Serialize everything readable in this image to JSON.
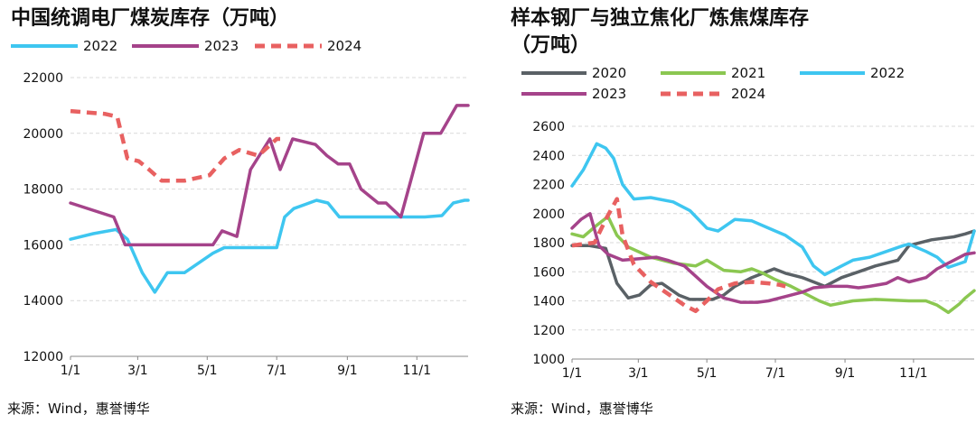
{
  "charts": [
    {
      "id": "left",
      "title": "中国统调电厂煤炭库存（万吨）",
      "source": "来源：Wind，惠誉博华",
      "chart_data": {
        "type": "line",
        "title": "中国统调电厂煤炭库存（万吨）",
        "xlabel": "",
        "ylabel": "",
        "x_ticks": [
          "1/1",
          "3/1",
          "5/1",
          "7/1",
          "9/1",
          "11/1"
        ],
        "x_tick_days": [
          0,
          59,
          120,
          181,
          243,
          304
        ],
        "x_range_days": [
          0,
          349
        ],
        "ylim": [
          12000,
          22000
        ],
        "y_ticks": [
          12000,
          14000,
          16000,
          18000,
          20000,
          22000
        ],
        "grid": true,
        "legend_position": "top-left",
        "series": [
          {
            "name": "2022",
            "color": "#3EC6F0",
            "dash": false,
            "points": [
              [
                0,
                16200
              ],
              [
                20,
                16400
              ],
              [
                40,
                16550
              ],
              [
                50,
                16200
              ],
              [
                63,
                15000
              ],
              [
                74,
                14300
              ],
              [
                85,
                15000
              ],
              [
                100,
                15000
              ],
              [
                125,
                15700
              ],
              [
                135,
                15900
              ],
              [
                150,
                15900
              ],
              [
                160,
                15900
              ],
              [
                175,
                15900
              ],
              [
                181,
                15900
              ],
              [
                188,
                17000
              ],
              [
                196,
                17300
              ],
              [
                206,
                17450
              ],
              [
                216,
                17600
              ],
              [
                226,
                17500
              ],
              [
                236,
                17000
              ],
              [
                246,
                17000
              ],
              [
                296,
                17000
              ],
              [
                311,
                17000
              ],
              [
                326,
                17050
              ],
              [
                336,
                17500
              ],
              [
                346,
                17600
              ],
              [
                349,
                17600
              ]
            ]
          },
          {
            "name": "2023",
            "color": "#A5438A",
            "dash": false,
            "points": [
              [
                0,
                17500
              ],
              [
                38,
                17000
              ],
              [
                48,
                16000
              ],
              [
                55,
                16000
              ],
              [
                125,
                16000
              ],
              [
                133,
                16500
              ],
              [
                146,
                16300
              ],
              [
                158,
                18700
              ],
              [
                175,
                19800
              ],
              [
                184,
                18700
              ],
              [
                195,
                19800
              ],
              [
                215,
                19600
              ],
              [
                225,
                19200
              ],
              [
                235,
                18900
              ],
              [
                245,
                18900
              ],
              [
                255,
                18000
              ],
              [
                270,
                17500
              ],
              [
                277,
                17500
              ],
              [
                290,
                17000
              ],
              [
                310,
                20000
              ],
              [
                325,
                20000
              ],
              [
                339,
                21000
              ],
              [
                349,
                21000
              ]
            ]
          },
          {
            "name": "2024",
            "color": "#E86161",
            "dash": true,
            "points": [
              [
                0,
                20800
              ],
              [
                30,
                20700
              ],
              [
                41,
                20600
              ],
              [
                50,
                19100
              ],
              [
                60,
                19000
              ],
              [
                69,
                18700
              ],
              [
                80,
                18300
              ],
              [
                100,
                18300
              ],
              [
                122,
                18500
              ],
              [
                135,
                19100
              ],
              [
                148,
                19400
              ],
              [
                165,
                19200
              ],
              [
                181,
                19800
              ],
              [
                184,
                19800
              ]
            ]
          }
        ]
      }
    },
    {
      "id": "right",
      "title": "样本钢厂与独立焦化厂炼焦煤库存",
      "title_line2": "（万吨）",
      "source": "来源：Wind，惠誉博华",
      "chart_data": {
        "type": "line",
        "title": "样本钢厂与独立焦化厂炼焦煤库存（万吨）",
        "xlabel": "",
        "ylabel": "",
        "x_ticks": [
          "1/1",
          "3/1",
          "5/1",
          "7/1",
          "9/1",
          "11/1"
        ],
        "x_tick_days": [
          0,
          59,
          120,
          181,
          243,
          304
        ],
        "x_range_days": [
          0,
          358
        ],
        "ylim": [
          1000,
          2600
        ],
        "y_ticks": [
          1000,
          1200,
          1400,
          1600,
          1800,
          2000,
          2200,
          2400,
          2600
        ],
        "grid": true,
        "legend_position": "top-left",
        "series": [
          {
            "name": "2020",
            "color": "#5A6166",
            "dash": false,
            "points": [
              [
                0,
                1780
              ],
              [
                15,
                1780
              ],
              [
                30,
                1760
              ],
              [
                40,
                1520
              ],
              [
                50,
                1420
              ],
              [
                60,
                1440
              ],
              [
                70,
                1510
              ],
              [
                80,
                1520
              ],
              [
                95,
                1440
              ],
              [
                105,
                1410
              ],
              [
                125,
                1410
              ],
              [
                135,
                1440
              ],
              [
                145,
                1500
              ],
              [
                160,
                1560
              ],
              [
                180,
                1620
              ],
              [
                190,
                1590
              ],
              [
                205,
                1560
              ],
              [
                225,
                1500
              ],
              [
                240,
                1560
              ],
              [
                255,
                1600
              ],
              [
                270,
                1640
              ],
              [
                290,
                1680
              ],
              [
                300,
                1780
              ],
              [
                320,
                1820
              ],
              [
                340,
                1840
              ],
              [
                350,
                1860
              ],
              [
                358,
                1880
              ]
            ]
          },
          {
            "name": "2021",
            "color": "#8BC751",
            "dash": false,
            "points": [
              [
                0,
                1860
              ],
              [
                10,
                1840
              ],
              [
                22,
                1920
              ],
              [
                32,
                1980
              ],
              [
                40,
                1850
              ],
              [
                50,
                1770
              ],
              [
                70,
                1700
              ],
              [
                90,
                1660
              ],
              [
                110,
                1640
              ],
              [
                120,
                1680
              ],
              [
                135,
                1610
              ],
              [
                150,
                1600
              ],
              [
                160,
                1620
              ],
              [
                170,
                1590
              ],
              [
                180,
                1550
              ],
              [
                195,
                1500
              ],
              [
                205,
                1460
              ],
              [
                220,
                1400
              ],
              [
                230,
                1370
              ],
              [
                250,
                1400
              ],
              [
                270,
                1410
              ],
              [
                300,
                1400
              ],
              [
                315,
                1400
              ],
              [
                325,
                1370
              ],
              [
                335,
                1320
              ],
              [
                345,
                1380
              ],
              [
                350,
                1420
              ],
              [
                358,
                1470
              ]
            ]
          },
          {
            "name": "2022",
            "color": "#3EC6F0",
            "dash": false,
            "points": [
              [
                0,
                2190
              ],
              [
                10,
                2300
              ],
              [
                22,
                2480
              ],
              [
                30,
                2450
              ],
              [
                37,
                2380
              ],
              [
                45,
                2200
              ],
              [
                55,
                2100
              ],
              [
                70,
                2110
              ],
              [
                90,
                2080
              ],
              [
                105,
                2020
              ],
              [
                120,
                1900
              ],
              [
                130,
                1880
              ],
              [
                145,
                1960
              ],
              [
                160,
                1950
              ],
              [
                175,
                1900
              ],
              [
                190,
                1850
              ],
              [
                205,
                1770
              ],
              [
                215,
                1640
              ],
              [
                225,
                1580
              ],
              [
                240,
                1640
              ],
              [
                250,
                1680
              ],
              [
                265,
                1700
              ],
              [
                280,
                1740
              ],
              [
                295,
                1780
              ],
              [
                300,
                1790
              ],
              [
                315,
                1740
              ],
              [
                325,
                1700
              ],
              [
                335,
                1630
              ],
              [
                350,
                1670
              ],
              [
                358,
                1880
              ]
            ]
          },
          {
            "name": "2023",
            "color": "#A5438A",
            "dash": false,
            "points": [
              [
                0,
                1900
              ],
              [
                8,
                1960
              ],
              [
                16,
                2000
              ],
              [
                24,
                1780
              ],
              [
                32,
                1720
              ],
              [
                45,
                1680
              ],
              [
                60,
                1690
              ],
              [
                75,
                1700
              ],
              [
                85,
                1680
              ],
              [
                100,
                1640
              ],
              [
                110,
                1570
              ],
              [
                120,
                1500
              ],
              [
                135,
                1420
              ],
              [
                150,
                1390
              ],
              [
                165,
                1390
              ],
              [
                175,
                1400
              ],
              [
                190,
                1430
              ],
              [
                205,
                1460
              ],
              [
                215,
                1490
              ],
              [
                230,
                1500
              ],
              [
                245,
                1500
              ],
              [
                255,
                1490
              ],
              [
                265,
                1500
              ],
              [
                280,
                1520
              ],
              [
                290,
                1560
              ],
              [
                300,
                1530
              ],
              [
                315,
                1560
              ],
              [
                325,
                1620
              ],
              [
                340,
                1680
              ],
              [
                350,
                1720
              ],
              [
                358,
                1730
              ]
            ]
          },
          {
            "name": "2024",
            "color": "#E86161",
            "dash": true,
            "points": [
              [
                0,
                1780
              ],
              [
                10,
                1790
              ],
              [
                20,
                1800
              ],
              [
                30,
                1960
              ],
              [
                40,
                2100
              ],
              [
                45,
                1850
              ],
              [
                55,
                1650
              ],
              [
                70,
                1530
              ],
              [
                85,
                1450
              ],
              [
                100,
                1370
              ],
              [
                110,
                1330
              ],
              [
                120,
                1400
              ],
              [
                130,
                1480
              ],
              [
                145,
                1520
              ],
              [
                160,
                1530
              ],
              [
                175,
                1520
              ],
              [
                185,
                1510
              ],
              [
                190,
                1500
              ]
            ]
          }
        ]
      }
    }
  ]
}
